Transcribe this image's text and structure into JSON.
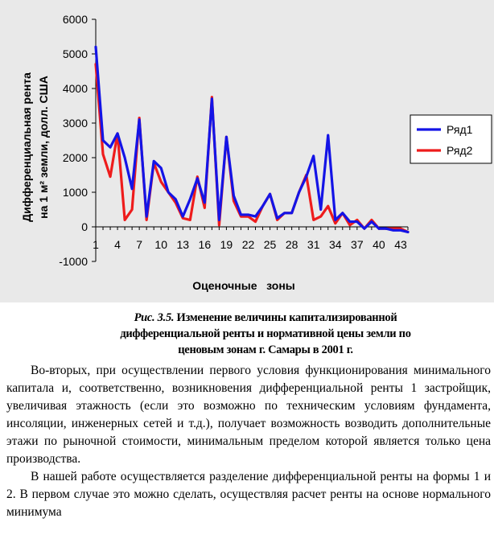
{
  "chart_data": {
    "type": "line",
    "xlabel": "Оценочные   зоны",
    "ylabel_line1": "Дифференциальная   рента",
    "ylabel_line2": "на 1 м² земли, долл. США",
    "ylim": [
      -1000,
      6000
    ],
    "yticks": [
      -1000,
      0,
      1000,
      2000,
      3000,
      4000,
      5000,
      6000
    ],
    "x": [
      1,
      2,
      3,
      4,
      5,
      6,
      7,
      8,
      9,
      10,
      11,
      12,
      13,
      14,
      15,
      16,
      17,
      18,
      19,
      20,
      21,
      22,
      23,
      24,
      25,
      26,
      27,
      28,
      29,
      30,
      31,
      32,
      33,
      34,
      35,
      36,
      37,
      38,
      39,
      40,
      41,
      42,
      43,
      44
    ],
    "xtick_labels": [
      "1",
      "4",
      "7",
      "10",
      "13",
      "16",
      "19",
      "22",
      "25",
      "28",
      "31",
      "34",
      "37",
      "40",
      "43"
    ],
    "grid": false,
    "legend_position": "right",
    "series": [
      {
        "name": "Ряд1",
        "color": "#1414e6",
        "values": [
          5200,
          2500,
          2300,
          2700,
          2000,
          1100,
          3100,
          300,
          1900,
          1700,
          1000,
          800,
          300,
          800,
          1400,
          700,
          3700,
          200,
          2600,
          900,
          350,
          350,
          300,
          600,
          950,
          250,
          400,
          400,
          1000,
          1450,
          2050,
          500,
          2650,
          200,
          400,
          150,
          150,
          -50,
          150,
          -50,
          -50,
          -100,
          -100,
          -150
        ]
      },
      {
        "name": "Ряд2",
        "color": "#ee1c1c",
        "values": [
          4700,
          2100,
          1450,
          2700,
          200,
          500,
          3150,
          200,
          1850,
          1300,
          1000,
          700,
          250,
          200,
          1450,
          550,
          3750,
          50,
          2600,
          750,
          300,
          300,
          150,
          600,
          950,
          200,
          400,
          400,
          1000,
          1500,
          200,
          300,
          600,
          100,
          400,
          50,
          200,
          -50,
          200,
          -50,
          -50,
          -50,
          -50,
          -150
        ]
      }
    ]
  },
  "caption": {
    "label": "Рис. 3.5.",
    "line1": " Изменение величины капитализированной",
    "line2": "дифференциальной ренты и нормативной цены земли по",
    "line3": "ценовым зонам г. Самары в 2001 г."
  },
  "paragraphs": [
    "Во-вторых, при осуществлении первого условия функционирования минимального капитала и, соответственно, возникновения дифференциальной ренты 1 застройщик, увеличивая этажность (если это возможно по техническим условиям фундамента, инсоляции, инженерных сетей и т.д.), получает возможность возводить дополнительные этажи по рыночной стоимости, минимальным пределом которой является только цена производства.",
    "В нашей работе осуществляется разделение дифференциальной ренты на формы 1 и 2. В первом случае это можно сделать, осуществляя расчет ренты на основе нормального минимума"
  ]
}
